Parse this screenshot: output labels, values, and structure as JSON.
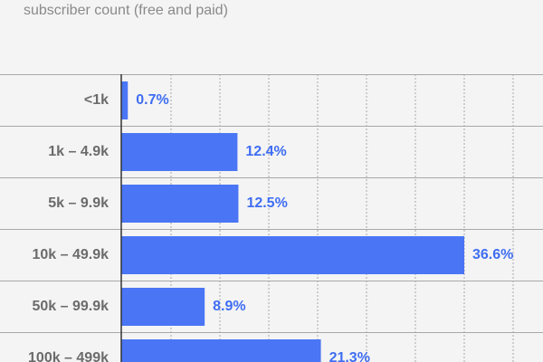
{
  "chart_data": {
    "type": "bar",
    "orientation": "horizontal",
    "subtitle": "subscriber count (free and paid)",
    "categories": [
      "<1k",
      "1k – 4.9k",
      "5k – 9.9k",
      "10k – 49.9k",
      "50k – 99.9k",
      "100k – 499k"
    ],
    "values": [
      0.7,
      12.4,
      12.5,
      36.6,
      8.9,
      21.3
    ],
    "value_labels": [
      "0.7%",
      "12.4%",
      "12.5%",
      "36.6%",
      "8.9%",
      "21.3%"
    ],
    "color": "#4a76f5",
    "xlim": [
      0,
      45
    ]
  }
}
